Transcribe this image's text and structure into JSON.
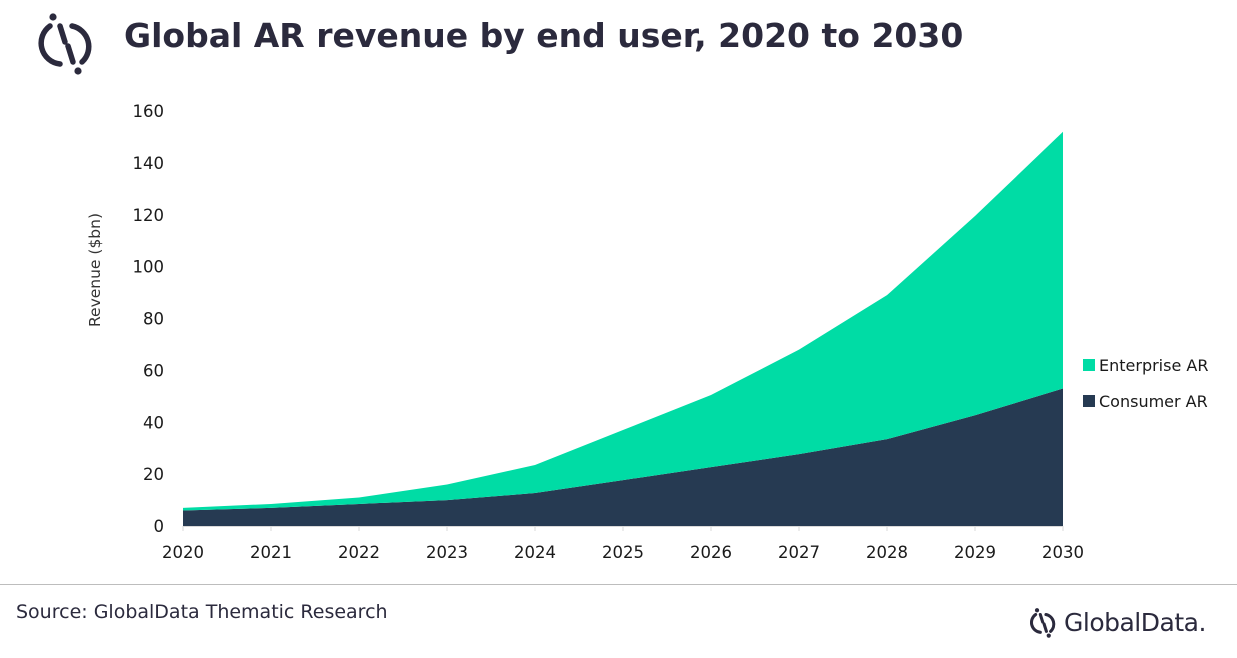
{
  "header": {
    "title": "Global AR revenue by end user, 2020 to 2030",
    "logo_icon": "globaldata-logo-icon"
  },
  "footer": {
    "source": "Source: GlobalData Thematic Research",
    "brand": "GlobalData."
  },
  "colors": {
    "enterprise": "#00dca5",
    "consumer": "#263a52",
    "text_dark": "#2b2a3d"
  },
  "chart_data": {
    "type": "area",
    "stacked": true,
    "title": "Global AR revenue by end user, 2020 to 2030",
    "xlabel": "",
    "ylabel": "Revenue ($bn)",
    "categories": [
      "2020",
      "2021",
      "2022",
      "2023",
      "2024",
      "2025",
      "2026",
      "2027",
      "2028",
      "2029",
      "2030"
    ],
    "ylim": [
      0,
      160
    ],
    "yticks": [
      0,
      20,
      40,
      60,
      80,
      100,
      120,
      140,
      160
    ],
    "grid": false,
    "legend_position": "right",
    "series": [
      {
        "name": "Consumer AR",
        "color": "#263a52",
        "values": [
          6,
          7,
          8.5,
          10,
          12.7,
          17.7,
          22.7,
          27.7,
          33.5,
          42.7,
          53
        ]
      },
      {
        "name": "Enterprise AR",
        "color": "#00dca5",
        "values": [
          1,
          1.5,
          2.5,
          6,
          10.8,
          19.3,
          27.8,
          40.3,
          55.5,
          76.8,
          99
        ]
      }
    ],
    "legend": [
      {
        "name": "Enterprise AR",
        "color": "#00dca5"
      },
      {
        "name": "Consumer AR",
        "color": "#263a52"
      }
    ]
  }
}
